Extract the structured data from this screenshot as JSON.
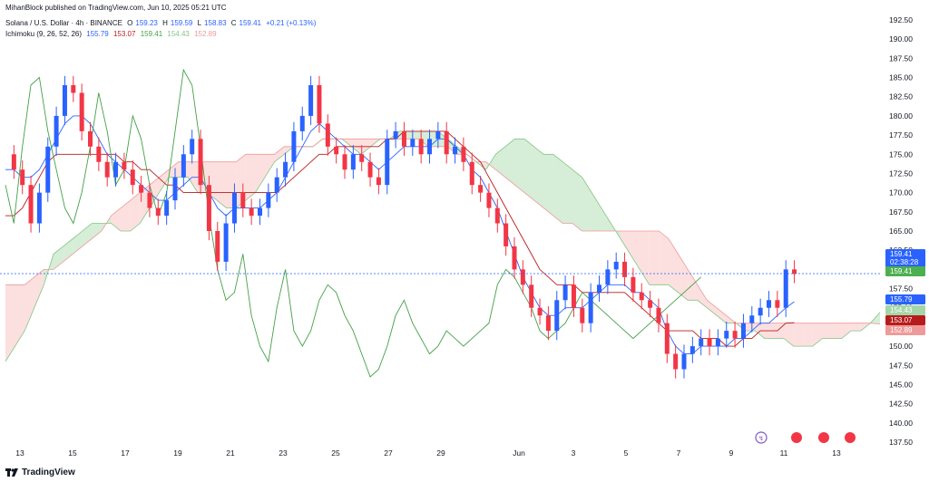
{
  "header": {
    "published": "MihanBlock published on TradingView.com, Jun 10, 2025 05:21 UTC",
    "symbol": "Solana / U.S. Dollar · 4h · BINANCE",
    "o_label": "O",
    "o_value": "159.23",
    "h_label": "H",
    "h_value": "159.59",
    "l_label": "L",
    "l_value": "158.83",
    "c_label": "C",
    "c_value": "159.41",
    "change": "+0.21 (+0.13%)",
    "ichimoku_label": "Ichimoku (9, 26, 52, 26)",
    "ich_values": [
      "155.79",
      "153.07",
      "159.41",
      "154.43",
      "152.89"
    ]
  },
  "footer": {
    "brand": "TradingView"
  },
  "price_tags": [
    {
      "value": "159.41",
      "sub": "02:38:28",
      "color": "#2962ff"
    },
    {
      "value": "159.41",
      "color": "#4caf50"
    },
    {
      "value": "155.79",
      "color": "#2962ff"
    },
    {
      "value": "154.43",
      "color": "#a5d6a7"
    },
    {
      "value": "153.07",
      "color": "#b71c1c"
    },
    {
      "value": "152.89",
      "color": "#ef9a9a"
    }
  ],
  "colors": {
    "up": "#2962ff",
    "down": "#f23645",
    "tenkan": "#2962ff",
    "kijun": "#b71c1c",
    "lagging": "#43a047",
    "cloud_green": "#a5d6a7",
    "cloud_red": "#f8bbb8"
  },
  "chart_data": {
    "type": "candlestick",
    "ylim": [
      137.5,
      192.5
    ],
    "y_ticks": [
      "192.50",
      "190.00",
      "187.50",
      "185.00",
      "182.50",
      "180.00",
      "177.50",
      "175.00",
      "172.50",
      "170.00",
      "167.50",
      "165.00",
      "162.50",
      "160.00",
      "157.50",
      "155.00",
      "152.50",
      "150.00",
      "147.50",
      "145.00",
      "142.50",
      "140.00",
      "137.50"
    ],
    "x_ticks": [
      "13",
      "15",
      "17",
      "19",
      "21",
      "23",
      "25",
      "27",
      "29",
      "Jun",
      "3",
      "5",
      "7",
      "9",
      "11",
      "13"
    ],
    "last_price": 159.41,
    "closes": [
      175,
      173,
      171,
      166,
      170,
      176,
      180,
      184,
      183,
      178,
      176,
      174,
      172,
      174,
      173,
      171,
      170,
      168,
      167,
      169,
      172,
      175,
      177,
      171,
      165,
      161,
      166,
      170,
      168,
      167,
      168,
      170,
      172,
      174,
      178,
      180,
      184,
      179,
      176,
      175,
      173,
      175,
      174,
      172,
      171,
      177,
      178,
      176,
      177,
      175,
      177,
      178,
      175,
      176,
      174,
      171,
      170,
      168,
      166,
      163,
      160,
      158,
      155,
      154,
      152,
      156,
      158,
      155,
      153,
      157,
      158,
      160,
      161,
      159,
      157,
      156,
      155,
      153,
      149,
      147,
      149,
      150,
      151,
      150,
      151,
      152,
      151,
      153,
      154,
      155,
      156,
      155,
      160,
      159.41
    ],
    "series": [
      {
        "name": "Tenkan",
        "values": [
          173,
          173,
          172,
          172,
          173,
          175,
          177,
          179,
          180,
          180,
          179,
          177,
          175,
          174,
          173,
          172,
          171,
          170,
          169,
          169,
          170,
          171,
          172,
          172,
          170,
          168,
          167,
          168,
          168,
          168,
          168,
          169,
          170,
          172,
          174,
          176,
          178,
          179,
          178,
          177,
          176,
          175,
          175,
          174,
          173,
          174,
          175,
          176,
          176,
          176,
          176,
          177,
          177,
          176,
          175,
          173,
          172,
          170,
          168,
          165,
          162,
          159,
          157,
          155,
          154,
          154,
          155,
          155,
          155,
          156,
          157,
          158,
          158,
          158,
          157,
          157,
          156,
          155,
          152,
          150,
          149,
          149,
          150,
          150,
          150,
          150,
          151,
          151,
          152,
          153,
          153,
          154,
          155,
          155.79
        ]
      },
      {
        "name": "Kijun",
        "values": [
          167,
          167,
          168,
          170,
          172,
          174,
          175,
          175,
          175,
          175,
          175,
          175,
          175,
          175,
          174,
          174,
          173,
          173,
          172,
          171,
          171,
          170,
          170,
          170,
          170,
          170,
          170,
          170,
          170,
          170,
          170,
          170,
          170,
          171,
          172,
          173,
          174,
          175,
          175,
          176,
          176,
          176,
          176,
          176,
          176,
          177,
          177,
          178,
          178,
          178,
          178,
          178,
          178,
          177,
          176,
          175,
          174,
          172,
          170,
          168,
          166,
          164,
          162,
          160,
          159,
          158,
          158,
          158,
          157,
          157,
          157,
          157,
          157,
          157,
          156,
          155,
          154,
          153,
          152,
          152,
          152,
          152,
          151,
          151,
          151,
          150,
          150,
          151,
          151,
          152,
          152,
          152,
          153,
          153.07
        ]
      },
      {
        "name": "Lagging",
        "values": [
          171,
          166,
          176,
          184,
          185,
          178,
          173,
          168,
          166,
          170,
          176,
          183,
          178,
          171,
          173,
          180,
          177,
          171,
          167,
          170,
          178,
          186,
          184,
          176,
          167,
          160,
          156,
          157,
          162,
          154,
          150,
          148,
          155,
          160,
          152,
          150,
          152,
          156,
          158,
          157,
          154,
          152,
          149,
          146,
          147,
          150,
          154,
          156,
          153,
          151,
          149,
          150,
          152,
          151,
          150,
          151,
          152,
          153,
          158,
          160,
          159,
          157,
          155,
          152,
          151,
          152,
          153,
          155,
          157,
          156,
          155,
          154,
          153,
          152,
          151,
          152,
          153,
          154,
          155,
          156,
          157,
          158,
          159
        ]
      },
      {
        "name": "SpanA",
        "values": [
          148,
          150,
          152,
          155,
          158,
          162,
          163,
          164,
          165,
          166,
          166,
          166,
          165,
          165,
          166,
          168,
          170,
          172,
          172,
          172,
          170,
          170,
          169,
          168,
          168,
          169,
          170,
          172,
          174,
          175,
          176,
          176,
          176,
          177,
          177,
          177,
          176,
          175,
          176,
          177,
          177,
          178,
          178,
          178,
          178,
          178,
          177,
          176,
          175,
          174,
          173,
          175,
          176,
          177,
          177,
          176,
          175,
          175,
          174,
          173,
          172,
          170,
          168,
          166,
          164,
          162,
          160,
          158,
          158,
          158,
          157,
          156,
          156,
          155,
          154,
          153,
          153,
          152,
          152,
          151,
          151,
          151,
          150,
          150,
          150,
          151,
          151,
          151,
          152,
          152,
          153,
          154.43
        ]
      },
      {
        "name": "SpanB",
        "values": [
          158,
          158,
          158,
          159,
          160,
          160,
          161,
          162,
          163,
          164,
          165,
          167,
          168,
          169,
          170,
          171,
          172,
          173,
          174,
          174,
          174,
          174,
          174,
          174,
          174,
          175,
          175,
          175,
          175,
          176,
          176,
          176,
          176,
          177,
          177,
          177,
          177,
          177,
          177,
          177,
          177,
          177,
          177,
          177,
          176,
          176,
          176,
          175,
          175,
          174,
          174,
          173,
          172,
          171,
          170,
          169,
          168,
          167,
          166,
          166,
          165,
          165,
          165,
          165,
          165,
          165,
          165,
          165,
          165,
          164,
          162,
          160,
          158,
          156,
          155,
          154,
          153,
          153,
          153,
          153,
          153,
          153,
          153,
          153,
          153,
          153,
          153,
          153,
          153,
          153,
          153,
          152.89
        ]
      }
    ]
  }
}
